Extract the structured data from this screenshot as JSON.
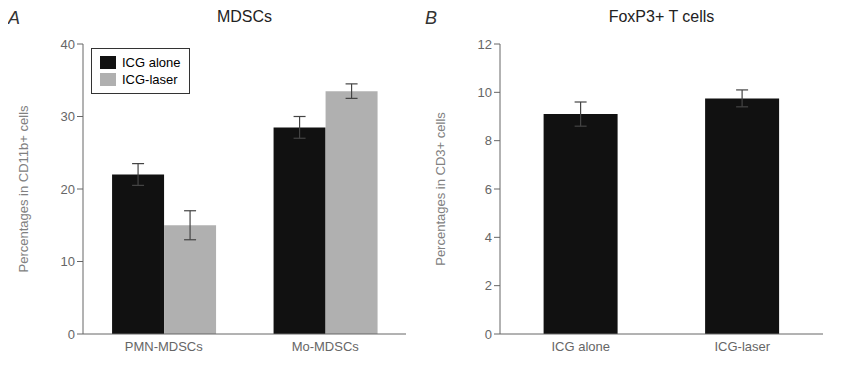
{
  "chart_data": [
    {
      "type": "bar",
      "title": "MDSCs",
      "ylabel": "Percentages in CD11b+ cells",
      "annotations": [
        "A"
      ],
      "categories": [
        "PMN-MDSCs",
        "Mo-MDSCs"
      ],
      "series": [
        {
          "name": "ICG alone",
          "color": "#111111",
          "values": [
            22.0,
            28.5
          ],
          "errors": [
            1.5,
            1.5
          ]
        },
        {
          "name": "ICG-laser",
          "color": "#b0b0b0",
          "values": [
            15.0,
            33.5
          ],
          "errors": [
            2.0,
            1.0
          ]
        }
      ],
      "ylim": [
        0,
        40
      ],
      "yticks": [
        0,
        10,
        20,
        30,
        40
      ],
      "legend": "upper left",
      "grid": false
    },
    {
      "type": "bar",
      "title": "FoxP3+ T cells",
      "ylabel": "Percentages in CD3+ cells",
      "annotations": [
        "B"
      ],
      "categories": [
        "ICG alone",
        "ICG-laser"
      ],
      "values": [
        9.1,
        9.75
      ],
      "errors": [
        0.5,
        0.35
      ],
      "color": "#111111",
      "ylim": [
        0,
        12
      ],
      "yticks": [
        0,
        2,
        4,
        6,
        8,
        10,
        12
      ],
      "grid": false
    }
  ]
}
